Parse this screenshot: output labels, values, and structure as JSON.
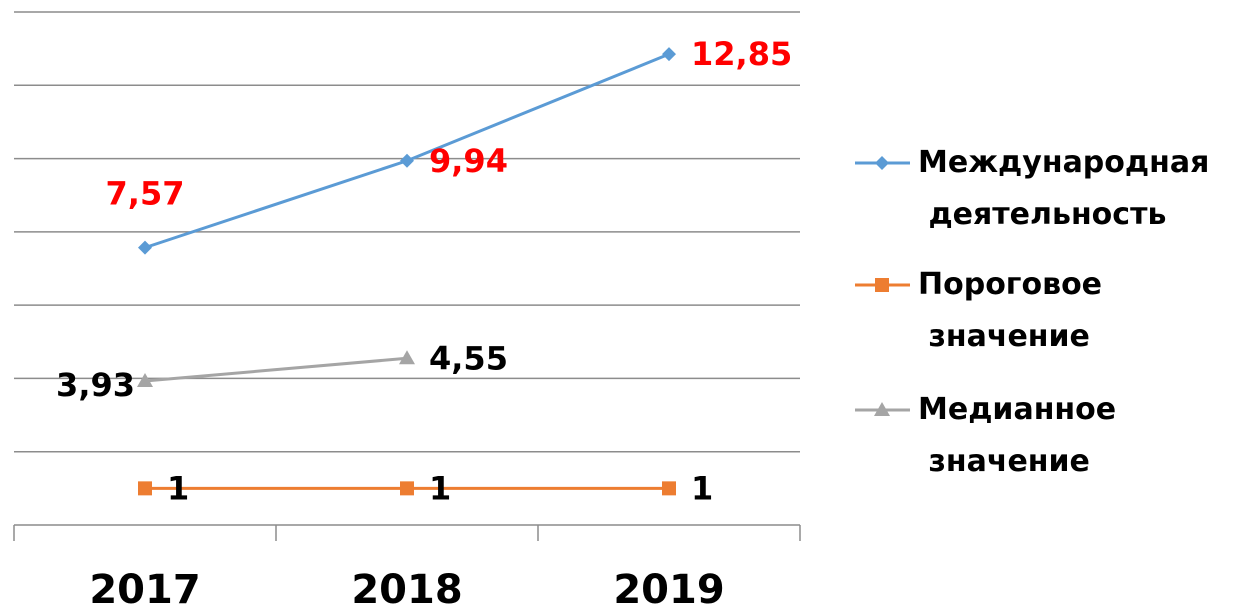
{
  "chart_data": {
    "type": "line",
    "categories": [
      "2017",
      "2018",
      "2019"
    ],
    "series": [
      {
        "name": "Международная деятельность",
        "color": "#5b9bd5",
        "marker": "diamond",
        "values": [
          7.57,
          9.94,
          12.85
        ],
        "value_labels": [
          "7,57",
          "9,94",
          "12,85"
        ],
        "label_color": "#ff0000"
      },
      {
        "name": "Пороговое значение",
        "color": "#ed7d31",
        "marker": "square",
        "values": [
          1,
          1,
          1
        ],
        "label_color": "#000000"
      },
      {
        "name": "Медианное значение",
        "color": "#a5a5a5",
        "marker": "triangle",
        "values": [
          3.93,
          4.55,
          null
        ],
        "value_labels": [
          "3,93",
          "4,55",
          null
        ],
        "label_color": "#000000"
      }
    ],
    "ylim": [
      0,
      14
    ],
    "yticks": [
      0,
      2,
      4,
      6,
      8,
      10,
      12,
      14
    ],
    "grid": true,
    "legend": "right"
  }
}
